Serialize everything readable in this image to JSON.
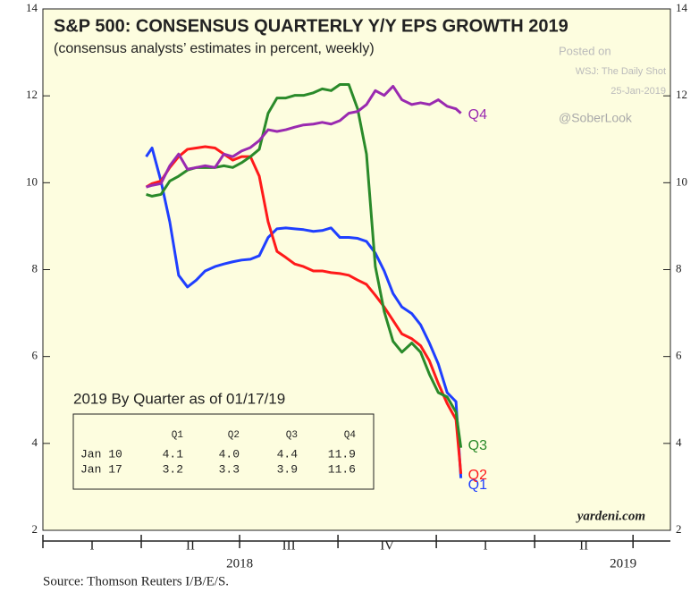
{
  "chart_data": {
    "type": "line",
    "title": "S&P 500: CONSENSUS QUARTERLY Y/Y EPS GROWTH 2019",
    "subtitle": "(consensus analysts’ estimates in percent, weekly)",
    "annotations": [
      "Posted on",
      "WSJ: The Daily Shot",
      "25-Jan-2019",
      "@SoberLook"
    ],
    "credit": "yardeni.com",
    "source": "Source: Thomson Reuters I/B/E/S.",
    "categories": [
      "I",
      "II",
      "III",
      "IV",
      "I",
      "II"
    ],
    "years": [
      "2018",
      "2019"
    ],
    "x": [
      1.05,
      1.11,
      1.2,
      1.29,
      1.38,
      1.47,
      1.56,
      1.65,
      1.75,
      1.84,
      1.93,
      2.02,
      2.11,
      2.2,
      2.29,
      2.38,
      2.47,
      2.56,
      2.65,
      2.75,
      2.84,
      2.93,
      3.02,
      3.11,
      3.2,
      3.29,
      3.38,
      3.47,
      3.56,
      3.65,
      3.75,
      3.84,
      3.93,
      4.02,
      4.11,
      4.2,
      4.25
    ],
    "xlim": [
      0,
      6.38
    ],
    "ylim": [
      2,
      14
    ],
    "yticks": [
      2,
      4,
      6,
      8,
      10,
      12,
      14
    ],
    "series": [
      {
        "name": "Q1",
        "color": "#1f3fff",
        "values": [
          10.6,
          10.8,
          10.04,
          9.1,
          7.87,
          7.6,
          7.76,
          7.97,
          8.07,
          8.13,
          8.18,
          8.22,
          8.24,
          8.32,
          8.74,
          8.94,
          8.96,
          8.94,
          8.92,
          8.88,
          8.9,
          8.96,
          8.74,
          8.74,
          8.72,
          8.65,
          8.38,
          7.97,
          7.45,
          7.14,
          6.99,
          6.73,
          6.31,
          5.83,
          5.17,
          4.96,
          3.2
        ]
      },
      {
        "name": "Q2",
        "color": "#ff1a1a",
        "values": [
          9.9,
          9.98,
          10.04,
          10.35,
          10.6,
          10.77,
          10.8,
          10.83,
          10.8,
          10.66,
          10.52,
          10.6,
          10.6,
          10.15,
          9.1,
          8.42,
          8.28,
          8.13,
          8.07,
          7.97,
          7.97,
          7.93,
          7.91,
          7.87,
          7.76,
          7.66,
          7.41,
          7.14,
          6.83,
          6.52,
          6.41,
          6.25,
          5.9,
          5.38,
          4.92,
          4.55,
          3.3
        ]
      },
      {
        "name": "Q3",
        "color": "#2a8a2a",
        "values": [
          9.73,
          9.69,
          9.73,
          10.04,
          10.15,
          10.29,
          10.35,
          10.35,
          10.35,
          10.39,
          10.35,
          10.46,
          10.6,
          10.77,
          11.6,
          11.95,
          11.95,
          12.01,
          12.01,
          12.07,
          12.16,
          12.12,
          12.26,
          12.26,
          11.7,
          10.66,
          8.07,
          7.04,
          6.35,
          6.1,
          6.31,
          6.1,
          5.59,
          5.17,
          5.07,
          4.72,
          3.9
        ]
      },
      {
        "name": "Q4",
        "color": "#9a2ab0",
        "values": [
          9.9,
          9.94,
          9.98,
          10.39,
          10.66,
          10.31,
          10.35,
          10.39,
          10.35,
          10.66,
          10.6,
          10.73,
          10.81,
          10.97,
          11.22,
          11.18,
          11.22,
          11.28,
          11.33,
          11.35,
          11.39,
          11.35,
          11.43,
          11.6,
          11.64,
          11.8,
          12.12,
          12.01,
          12.22,
          11.91,
          11.8,
          11.84,
          11.8,
          11.91,
          11.76,
          11.7,
          11.6
        ]
      }
    ],
    "inset_table": {
      "title": "2019 By Quarter as of 01/17/19",
      "columns": [
        "Q1",
        "Q2",
        "Q3",
        "Q4"
      ],
      "rows": [
        {
          "label": "Jan 10",
          "cells": [
            "4.1",
            "4.0",
            "4.4",
            "11.9"
          ]
        },
        {
          "label": "Jan 17",
          "cells": [
            "3.2",
            "3.3",
            "3.9",
            "11.6"
          ]
        }
      ]
    }
  }
}
